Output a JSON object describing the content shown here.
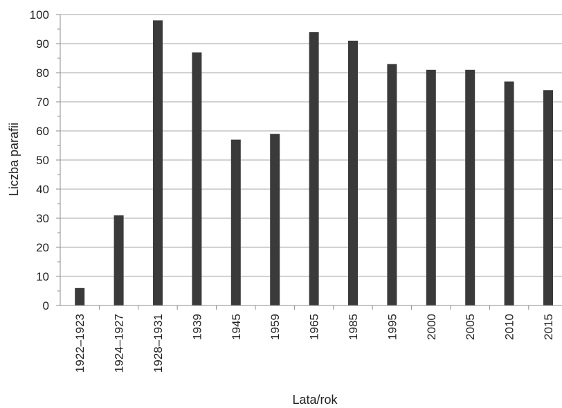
{
  "chart_data": {
    "type": "bar",
    "title": "",
    "xlabel": "Lata/rok",
    "ylabel": "Liczba parafii",
    "categories": [
      "1922–1923",
      "1924–1927",
      "1928–1931",
      "1939",
      "1945",
      "1959",
      "1965",
      "1985",
      "1995",
      "2000",
      "2005",
      "2010",
      "2015"
    ],
    "values": [
      6,
      31,
      98,
      87,
      57,
      59,
      94,
      91,
      83,
      81,
      81,
      77,
      74
    ],
    "ylim": [
      0,
      100
    ],
    "yticks": [
      0,
      10,
      20,
      30,
      40,
      50,
      60,
      70,
      80,
      90,
      100
    ],
    "grid": true,
    "legend": "none",
    "bar_color": "#3a3a3a"
  }
}
